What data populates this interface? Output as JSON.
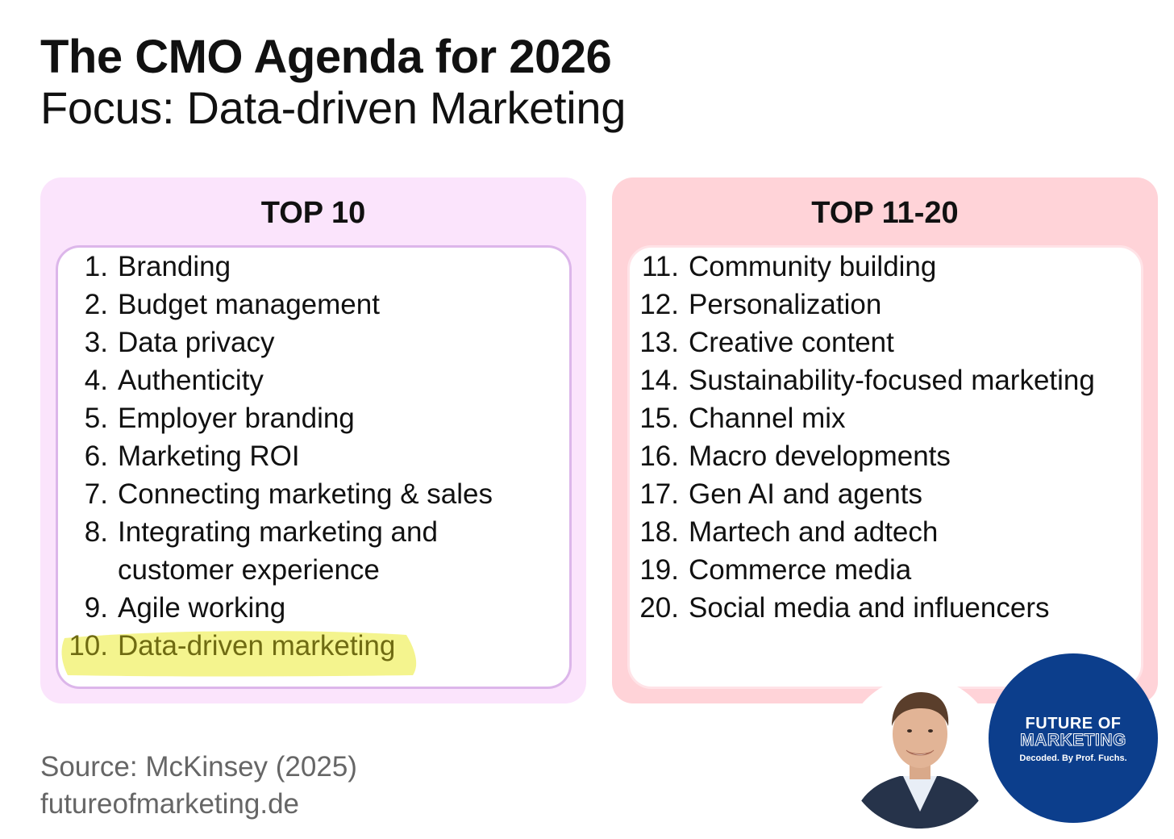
{
  "header": {
    "title": "The CMO Agenda for 2026",
    "subtitle": "Focus: Data-driven Marketing"
  },
  "left_panel": {
    "heading": "TOP 10",
    "items": [
      {
        "num": "1.",
        "text": "Branding"
      },
      {
        "num": "2.",
        "text": "Budget management"
      },
      {
        "num": "3.",
        "text": "Data privacy"
      },
      {
        "num": "4.",
        "text": "Authenticity"
      },
      {
        "num": "5.",
        "text": "Employer branding"
      },
      {
        "num": "6.",
        "text": "Marketing ROI"
      },
      {
        "num": "7.",
        "text": "Connecting marketing & sales"
      },
      {
        "num": "8.",
        "text": "Integrating marketing and customer experience"
      },
      {
        "num": "9.",
        "text": "Agile working"
      },
      {
        "num": "10.",
        "text": "Data-driven marketing"
      }
    ]
  },
  "right_panel": {
    "heading": "TOP 11-20",
    "items": [
      {
        "num": "11.",
        "text": "Community building"
      },
      {
        "num": "12.",
        "text": "Personalization"
      },
      {
        "num": "13.",
        "text": "Creative content"
      },
      {
        "num": "14.",
        "text": "Sustainability-focused marketing"
      },
      {
        "num": "15.",
        "text": "Channel mix"
      },
      {
        "num": "16.",
        "text": "Macro developments"
      },
      {
        "num": "17.",
        "text": "Gen AI and agents"
      },
      {
        "num": "18.",
        "text": "Martech and adtech"
      },
      {
        "num": "19.",
        "text": "Commerce media"
      },
      {
        "num": "20.",
        "text": "Social media and influencers"
      }
    ]
  },
  "footer": {
    "source": "Source: McKinsey (2025)",
    "site": "futureofmarketing.de"
  },
  "badge": {
    "line1": "FUTURE OF",
    "line2": "MARKETING",
    "line3": "Decoded. By Prof. Fuchs."
  },
  "colors": {
    "left_panel_bg": "#fbe4fc",
    "right_panel_bg": "#ffd3d8",
    "highlight": "#f2f27a",
    "badge_bg": "#0c3e8c"
  }
}
